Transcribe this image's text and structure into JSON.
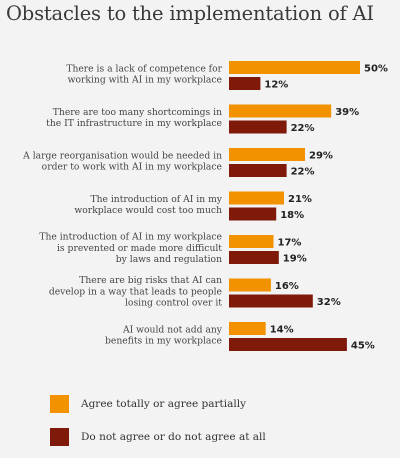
{
  "title": "Obstacles to the implementation of AI",
  "colors": {
    "agree": "#f39200",
    "disagree": "#7f1a0b"
  },
  "chart_data": {
    "type": "bar",
    "orientation": "horizontal",
    "title": "Obstacles to the implementation of AI",
    "value_format": "percent",
    "categories": [
      [
        "There is a lack of competence for",
        "working with AI in my workplace"
      ],
      [
        "There are too many shortcomings in",
        "the IT infrastructure in my workplace"
      ],
      [
        "A large reorganisation would be needed in",
        "order to work with AI in my workplace"
      ],
      [
        "The introduction of AI in my",
        "workplace would cost too much"
      ],
      [
        "The introduction of AI in my workplace",
        "is prevented or made more difficult",
        "by laws and regulation"
      ],
      [
        "There are big risks that AI can",
        "develop in a way that leads to people",
        "losing control over it"
      ],
      [
        "AI would not add any",
        "benefits in my workplace"
      ]
    ],
    "series": [
      {
        "name": "Agree totally or agree partially",
        "color": "#f39200",
        "values": [
          50,
          39,
          29,
          21,
          17,
          16,
          14
        ]
      },
      {
        "name": "Do not agree or do not agree at all",
        "color": "#7f1a0b",
        "values": [
          12,
          22,
          22,
          18,
          19,
          32,
          45
        ]
      }
    ],
    "legend_position": "bottom-left",
    "grid": false
  }
}
